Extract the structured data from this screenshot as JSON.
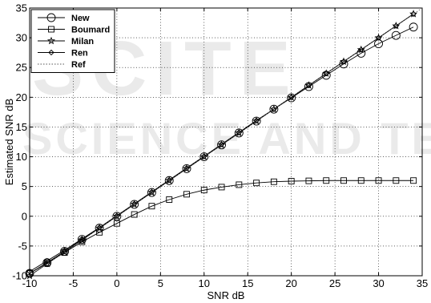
{
  "watermark": {
    "line1": "SCITE",
    "line2": "SCIENCE AND TEC"
  },
  "chart_data": {
    "type": "line",
    "xlabel": "SNR dB",
    "ylabel": "Estimated SNR dB",
    "xlim": [
      -10,
      35
    ],
    "ylim": [
      -10,
      35
    ],
    "xticks": [
      -10,
      -5,
      0,
      5,
      10,
      15,
      20,
      25,
      30,
      35
    ],
    "yticks": [
      -10,
      -5,
      0,
      5,
      10,
      15,
      20,
      25,
      30,
      35
    ],
    "grid": true,
    "legend_position": "top-left",
    "x": [
      -10,
      -8,
      -6,
      -4,
      -2,
      0,
      2,
      4,
      6,
      8,
      10,
      12,
      14,
      16,
      18,
      20,
      22,
      24,
      26,
      28,
      30,
      32,
      34
    ],
    "series": [
      {
        "name": "New",
        "marker": "circle",
        "color": "#000000",
        "values": [
          -9.6,
          -7.8,
          -5.9,
          -3.9,
          -2.0,
          0.0,
          2.0,
          4.0,
          6.0,
          8.0,
          10.0,
          12.0,
          14.0,
          16.0,
          18.0,
          19.9,
          21.8,
          23.7,
          25.6,
          27.4,
          29.0,
          30.4,
          31.8
        ]
      },
      {
        "name": "Boumard",
        "marker": "square",
        "color": "#000000",
        "values": [
          -9.6,
          -7.9,
          -6.1,
          -4.3,
          -2.7,
          -1.2,
          0.3,
          1.7,
          2.8,
          3.7,
          4.4,
          4.9,
          5.3,
          5.6,
          5.8,
          5.9,
          5.95,
          6.0,
          6.0,
          6.0,
          6.0,
          6.0,
          6.0
        ]
      },
      {
        "name": "Milan",
        "marker": "star",
        "color": "#000000",
        "values": [
          -10,
          -8,
          -6,
          -4,
          -2,
          0,
          2,
          4,
          6,
          8,
          10,
          12,
          14,
          16,
          18,
          20,
          22,
          24,
          26,
          28,
          30,
          32,
          34
        ]
      },
      {
        "name": "Ren",
        "marker": "diamond",
        "color": "#000000",
        "values": [
          -9.3,
          -7.5,
          -5.7,
          -3.8,
          -1.9,
          0.1,
          2.1,
          4.1,
          6.1,
          8.1,
          10.1,
          12.1,
          14.1,
          16.1,
          18.0,
          20.0,
          22.0,
          24.0,
          26.0,
          28.0,
          30.0,
          32.0,
          34.0
        ]
      },
      {
        "name": "Ref",
        "marker": "none",
        "color": "#555555",
        "dashed": true,
        "x": [
          -10,
          35
        ],
        "values": [
          -10,
          35
        ]
      }
    ]
  }
}
